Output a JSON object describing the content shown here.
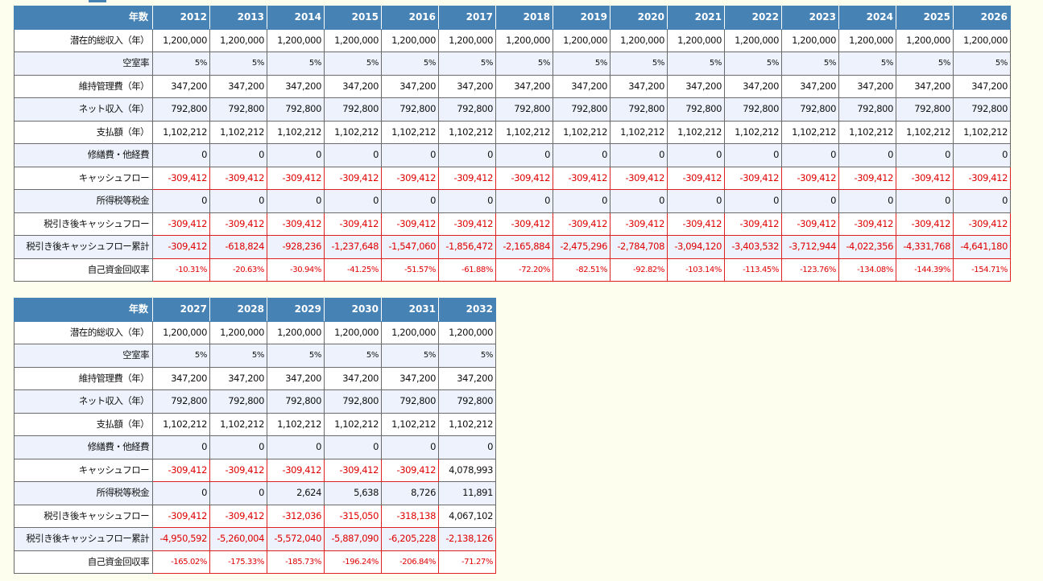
{
  "header_label": "年数",
  "row_labels": [
    "潜在的総収入（年）",
    "空室率",
    "維持管理費（年）",
    "ネット収入（年）",
    "支払額（年）",
    "修繕費・他経費",
    "キャッシュフロー",
    "所得税等税金",
    "税引き後キャッシュフロー",
    "税引き後キャッシュフロー累計",
    "自己資金回収率"
  ],
  "tables": [
    {
      "years": [
        "2012",
        "2013",
        "2014",
        "2015",
        "2016",
        "2017",
        "2018",
        "2019",
        "2020",
        "2021",
        "2022",
        "2023",
        "2024",
        "2025",
        "2026"
      ],
      "rows": [
        [
          "1,200,000",
          "1,200,000",
          "1,200,000",
          "1,200,000",
          "1,200,000",
          "1,200,000",
          "1,200,000",
          "1,200,000",
          "1,200,000",
          "1,200,000",
          "1,200,000",
          "1,200,000",
          "1,200,000",
          "1,200,000",
          "1,200,000"
        ],
        [
          "5%",
          "5%",
          "5%",
          "5%",
          "5%",
          "5%",
          "5%",
          "5%",
          "5%",
          "5%",
          "5%",
          "5%",
          "5%",
          "5%",
          "5%"
        ],
        [
          "347,200",
          "347,200",
          "347,200",
          "347,200",
          "347,200",
          "347,200",
          "347,200",
          "347,200",
          "347,200",
          "347,200",
          "347,200",
          "347,200",
          "347,200",
          "347,200",
          "347,200"
        ],
        [
          "792,800",
          "792,800",
          "792,800",
          "792,800",
          "792,800",
          "792,800",
          "792,800",
          "792,800",
          "792,800",
          "792,800",
          "792,800",
          "792,800",
          "792,800",
          "792,800",
          "792,800"
        ],
        [
          "1,102,212",
          "1,102,212",
          "1,102,212",
          "1,102,212",
          "1,102,212",
          "1,102,212",
          "1,102,212",
          "1,102,212",
          "1,102,212",
          "1,102,212",
          "1,102,212",
          "1,102,212",
          "1,102,212",
          "1,102,212",
          "1,102,212"
        ],
        [
          "0",
          "0",
          "0",
          "0",
          "0",
          "0",
          "0",
          "0",
          "0",
          "0",
          "0",
          "0",
          "0",
          "0",
          "0"
        ],
        [
          "-309,412",
          "-309,412",
          "-309,412",
          "-309,412",
          "-309,412",
          "-309,412",
          "-309,412",
          "-309,412",
          "-309,412",
          "-309,412",
          "-309,412",
          "-309,412",
          "-309,412",
          "-309,412",
          "-309,412"
        ],
        [
          "0",
          "0",
          "0",
          "0",
          "0",
          "0",
          "0",
          "0",
          "0",
          "0",
          "0",
          "0",
          "0",
          "0",
          "0"
        ],
        [
          "-309,412",
          "-309,412",
          "-309,412",
          "-309,412",
          "-309,412",
          "-309,412",
          "-309,412",
          "-309,412",
          "-309,412",
          "-309,412",
          "-309,412",
          "-309,412",
          "-309,412",
          "-309,412",
          "-309,412"
        ],
        [
          "-309,412",
          "-618,824",
          "-928,236",
          "-1,237,648",
          "-1,547,060",
          "-1,856,472",
          "-2,165,884",
          "-2,475,296",
          "-2,784,708",
          "-3,094,120",
          "-3,403,532",
          "-3,712,944",
          "-4,022,356",
          "-4,331,768",
          "-4,641,180"
        ],
        [
          "-10.31%",
          "-20.63%",
          "-30.94%",
          "-41.25%",
          "-51.57%",
          "-61.88%",
          "-72.20%",
          "-82.51%",
          "-92.82%",
          "-103.14%",
          "-113.45%",
          "-123.76%",
          "-134.08%",
          "-144.39%",
          "-154.71%"
        ]
      ]
    },
    {
      "years": [
        "2027",
        "2028",
        "2029",
        "2030",
        "2031",
        "2032"
      ],
      "rows": [
        [
          "1,200,000",
          "1,200,000",
          "1,200,000",
          "1,200,000",
          "1,200,000",
          "1,200,000"
        ],
        [
          "5%",
          "5%",
          "5%",
          "5%",
          "5%",
          "5%"
        ],
        [
          "347,200",
          "347,200",
          "347,200",
          "347,200",
          "347,200",
          "347,200"
        ],
        [
          "792,800",
          "792,800",
          "792,800",
          "792,800",
          "792,800",
          "792,800"
        ],
        [
          "1,102,212",
          "1,102,212",
          "1,102,212",
          "1,102,212",
          "1,102,212",
          "1,102,212"
        ],
        [
          "0",
          "0",
          "0",
          "0",
          "0",
          "0"
        ],
        [
          "-309,412",
          "-309,412",
          "-309,412",
          "-309,412",
          "-309,412",
          "4,078,993"
        ],
        [
          "0",
          "0",
          "2,624",
          "5,638",
          "8,726",
          "11,891"
        ],
        [
          "-309,412",
          "-309,412",
          "-312,036",
          "-315,050",
          "-318,138",
          "4,067,102"
        ],
        [
          "-4,950,592",
          "-5,260,004",
          "-5,572,040",
          "-5,887,090",
          "-6,205,228",
          "-2,138,126"
        ],
        [
          "-165.02%",
          "-175.33%",
          "-185.73%",
          "-196.24%",
          "-206.84%",
          "-71.27%"
        ]
      ]
    }
  ],
  "colors": {
    "header_bg": "#4682b4",
    "alt_row_bg": "#edf2fc",
    "negative": "#e00000",
    "page_bg": "#fefeef"
  }
}
